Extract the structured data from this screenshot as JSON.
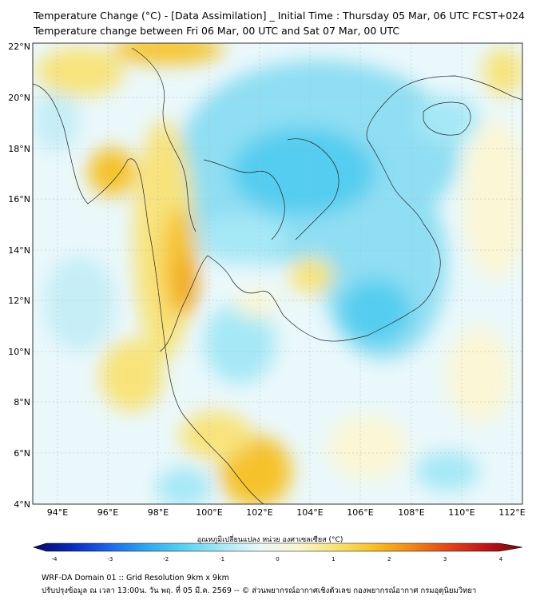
{
  "titles": {
    "line1": "Temperature Change (°C) - [Data Assimilation] _ Initial Time : Thursday 05 Mar, 06 UTC FCST+024",
    "line2": "Temperature change between Fri 06 Mar, 00 UTC and Sat 07 Mar, 00 UTC"
  },
  "map": {
    "lat_labels": [
      "22°N",
      "20°N",
      "18°N",
      "16°N",
      "14°N",
      "12°N",
      "10°N",
      "8°N",
      "6°N",
      "4°N"
    ],
    "lon_labels": [
      "94°E",
      "96°E",
      "98°E",
      "100°E",
      "102°E",
      "104°E",
      "106°E",
      "108°E",
      "110°E",
      "112°E"
    ]
  },
  "colorbar": {
    "title": "อุณหภูมิเปลี่ยนแปลง หน่วย องศาเซลเซียส (°C)",
    "tick_labels": [
      "-4",
      "-3",
      "-2",
      "-1",
      "0",
      "1",
      "2",
      "3",
      "4"
    ],
    "min": -4,
    "max": 4,
    "colors": [
      "#08086b",
      "#0a28b8",
      "#1f64e8",
      "#2fa8f0",
      "#58d2f2",
      "#a6e8f6",
      "#eaf8fb",
      "#fbf6d4",
      "#f8e37a",
      "#f6c22a",
      "#f08a18",
      "#e04818",
      "#c0141a",
      "#6e0a0a"
    ]
  },
  "footer": {
    "line1": "WRF-DA Domain 01 :: Grid Resolution 9km x 9km",
    "line2": "ปรับปรุงข้อมูล ณ เวลา 13:00น. วัน พฤ. ที่ 05 มี.ค. 2569 -- © ส่วนพยากรณ์อากาศเชิงตัวเลข กองพยากรณ์อากาศ กรมอุตุนิยมวิทยา"
  }
}
